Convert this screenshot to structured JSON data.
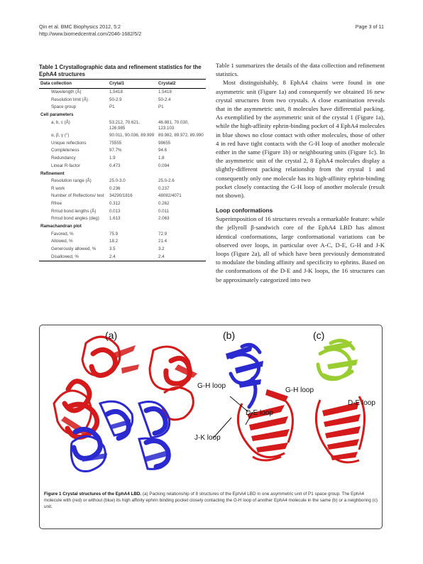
{
  "header": {
    "authors": "Qin et al. BMC Biophysics 2012, 5:2",
    "url": "http://www.biomedcentral.com/2046-1682/5/2",
    "page": "Page 3 of 11"
  },
  "table": {
    "caption": "Table 1 Crystallographic data and refinement statistics for the EphA4 structures",
    "headers": [
      "Data collection",
      "Crytal1",
      "Crystal2"
    ],
    "rows": [
      {
        "type": "row",
        "label": "Wavelength (Å)",
        "v1": "1.5418",
        "v2": "1.5418"
      },
      {
        "type": "row",
        "label": "Resolution limit (Å)",
        "v1": "50-2.9",
        "v2": "50-2.4"
      },
      {
        "type": "row",
        "label": "Space group",
        "v1": "P1",
        "v2": "P1"
      },
      {
        "type": "section",
        "label": "Cell parameters"
      },
      {
        "type": "row",
        "label": "a, b, c (Å)",
        "v1": "53.212, 70.621, 126.985",
        "v2": "46.881, 70.030, 123.103"
      },
      {
        "type": "row",
        "label": "α, β, γ (°)",
        "v1": "90.011, 90.036, 89.999",
        "v2": "89.982, 89.972, 89.990"
      },
      {
        "type": "row",
        "label": "Unique reflections",
        "v1": "75555",
        "v2": "98655"
      },
      {
        "type": "row",
        "label": "Completeness",
        "v1": "97.7%",
        "v2": "94.6"
      },
      {
        "type": "row",
        "label": "Redundancy",
        "v1": "1.9",
        "v2": "1.8"
      },
      {
        "type": "row",
        "label": "Linear R-factor",
        "v1": "0.473",
        "v2": "0.094"
      },
      {
        "type": "section",
        "label": "Refinement"
      },
      {
        "type": "row",
        "label": "Resolution range (Å)",
        "v1": "25.0-3.0",
        "v2": "25.0-2.6"
      },
      {
        "type": "row",
        "label": "R work",
        "v1": "0.236",
        "v2": "0.237"
      },
      {
        "type": "row",
        "label": "Number of Reflections/ test",
        "v1": "34290/1816",
        "v2": "48082/4071"
      },
      {
        "type": "row",
        "label": "Rfree",
        "v1": "0.312",
        "v2": "0.262"
      },
      {
        "type": "row",
        "label": "Rmsd bond lengths (Å)",
        "v1": "0.013",
        "v2": "0.011"
      },
      {
        "type": "row",
        "label": "Rmsd bond angles (deg)",
        "v1": "1.613",
        "v2": "2.063"
      },
      {
        "type": "section",
        "label": "Ramachandran plot"
      },
      {
        "type": "row",
        "label": "Favored, %",
        "v1": "75.9",
        "v2": "72.9"
      },
      {
        "type": "row",
        "label": "Allowed, %",
        "v1": "18.2",
        "v2": "21.4"
      },
      {
        "type": "row",
        "label": "Generously allowed, %",
        "v1": "3.5",
        "v2": "3.2"
      },
      {
        "type": "row",
        "label": "Disallowed, %",
        "v1": "2.4",
        "v2": "2.4"
      }
    ]
  },
  "body": {
    "p1": "Table 1 summarizes the details of the data collection and refinement statistics.",
    "p2": "Most distinguishably, 8 EphA4 chains were found in one asymmetric unit (Figure 1a) and consequently we obtained 16 new crystal structures from two crystals. A close examination reveals that in the asymmetric unit, 8 molecules have differential packing. As exemplified by the asymmetric unit of the crystal 1 (Figure 1a), while the high-affinity ephrin-binding pocket of 4 EphA4 molecules in blue shows no close contact with other molecules, those of other 4 in red have tight contacts with the G-H loop of another molecule either in the same (Figure 1b) or neighbouring units (Figure 1c). In the asymmetric unit of the crystal 2, 8 EphA4 molecules display a slightly-different packing relationship from the crystal 1 and consequently only one molecule has its high-affinity ephrin-binding pocket closely contacting the G-H loop of another molecule (result not shown).",
    "heading": "Loop conformations",
    "p3": "Superimposition of 16 structures reveals a remarkable feature: while the jellyroll β-sandwich core of the EphA4 LBD has almost identical conformations, large conformational variations can be observed over loops, in particular over A-C, D-E, G-H and J-K loops (Figure 2a), all of which have been previously demonstrated to modulate the binding affinity and specificity to ephrins. Based on the conformations of the D-E and J-K loops, the 16 structures can be approximately categorized into two"
  },
  "figure": {
    "panel_a": "(a)",
    "panel_b": "(b)",
    "panel_c": "(c)",
    "b_gh": "G-H loop",
    "b_de": "D-E loop",
    "b_jk": "J-K loop",
    "c_gh": "G-H loop",
    "c_de": "D-E loop",
    "caption_bold": "Figure 1 Crystal structures of the EphA4 LBD.",
    "caption_text": " (a) Packing relationship of 8 structures of the EphA4 LBD in one asymmetric unit of P1 space group. The EphA4 molecule with (red) or without (blue) its high affinity ephrin binding pocket closely contacting the G-H loop of another EphA4 molecule in the same (b) or a neighboring (c) unit.",
    "colors": {
      "red": "#d41a1a",
      "blue": "#2a2ad0",
      "green": "#9acd32"
    }
  }
}
